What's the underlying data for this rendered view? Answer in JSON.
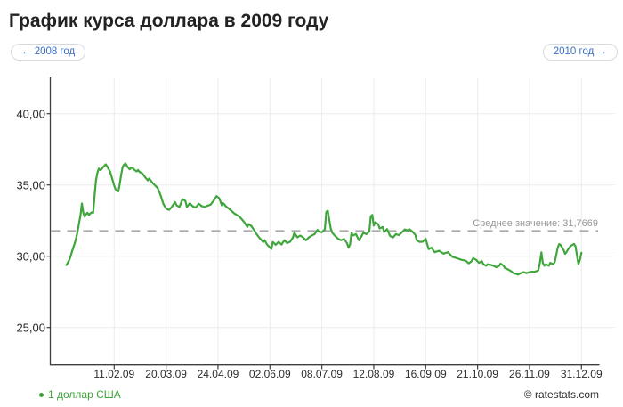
{
  "page": {
    "title": "График курса доллара в 2009 году"
  },
  "nav": {
    "prev_label": "← 2008 год",
    "next_label": "2010 год →",
    "link_color": "#3a70c4"
  },
  "footer": {
    "copyright": "© ratestats.com"
  },
  "chart_data": {
    "type": "line",
    "title": "График курса доллара в 2009 году",
    "legend_position": "bottom-left",
    "grid": true,
    "y_axis": {
      "values": [
        25,
        30,
        35,
        40
      ],
      "labels": [
        "25,00",
        "30,00",
        "35,00",
        "40,00"
      ],
      "range_shown": [
        22.4,
        42.5
      ]
    },
    "x_axis": {
      "ticks": [
        {
          "day": 42,
          "label": "11.02.09"
        },
        {
          "day": 79,
          "label": "20.03.09"
        },
        {
          "day": 114,
          "label": "24.04.09"
        },
        {
          "day": 153,
          "label": "02.06.09"
        },
        {
          "day": 189,
          "label": "08.07.09"
        },
        {
          "day": 224,
          "label": "12.08.09"
        },
        {
          "day": 259,
          "label": "16.09.09"
        },
        {
          "day": 294,
          "label": "21.10.09"
        },
        {
          "day": 330,
          "label": "26.11.09"
        },
        {
          "day": 365,
          "label": "31.12.09"
        }
      ]
    },
    "average": {
      "value": 31.7669,
      "label": "Среднее значение: 31,7669"
    },
    "colors": {
      "line": "#3fa63c",
      "grid": "#ececec",
      "axis": "#3f3f3f",
      "average_line": "#a9a9a9",
      "average_label": "#989898",
      "tick_text": "#2d2d2d"
    },
    "series": [
      {
        "name": "1 доллар США",
        "color": "#3fa63c",
        "points": [
          [
            8,
            29.39
          ],
          [
            9,
            29.55
          ],
          [
            10,
            29.75
          ],
          [
            11,
            30.0
          ],
          [
            12,
            30.35
          ],
          [
            13,
            30.65
          ],
          [
            14,
            30.95
          ],
          [
            15,
            31.3
          ],
          [
            16,
            31.8
          ],
          [
            17,
            32.35
          ],
          [
            18,
            32.9
          ],
          [
            19,
            33.7
          ],
          [
            20,
            33.05
          ],
          [
            21,
            32.78
          ],
          [
            22,
            32.95
          ],
          [
            23,
            33.05
          ],
          [
            24,
            32.9
          ],
          [
            25,
            33.0
          ],
          [
            26,
            33.08
          ],
          [
            27,
            33.05
          ],
          [
            28,
            34.2
          ],
          [
            29,
            35.3
          ],
          [
            30,
            35.85
          ],
          [
            31,
            36.15
          ],
          [
            32,
            36.05
          ],
          [
            33,
            36.1
          ],
          [
            34,
            36.25
          ],
          [
            35,
            36.35
          ],
          [
            36,
            36.45
          ],
          [
            37,
            36.3
          ],
          [
            38,
            36.12
          ],
          [
            39,
            35.95
          ],
          [
            40,
            35.65
          ],
          [
            41,
            35.3
          ],
          [
            42,
            34.95
          ],
          [
            43,
            34.7
          ],
          [
            44,
            34.6
          ],
          [
            45,
            34.55
          ],
          [
            46,
            35.1
          ],
          [
            47,
            35.75
          ],
          [
            48,
            36.25
          ],
          [
            49,
            36.42
          ],
          [
            50,
            36.52
          ],
          [
            51,
            36.35
          ],
          [
            52,
            36.22
          ],
          [
            53,
            36.1
          ],
          [
            54,
            36.18
          ],
          [
            55,
            36.22
          ],
          [
            56,
            36.1
          ],
          [
            57,
            36.02
          ],
          [
            58,
            35.95
          ],
          [
            59,
            36.05
          ],
          [
            60,
            35.92
          ],
          [
            62,
            35.82
          ],
          [
            64,
            35.55
          ],
          [
            66,
            35.32
          ],
          [
            67,
            35.45
          ],
          [
            69,
            35.18
          ],
          [
            71,
            34.98
          ],
          [
            73,
            34.78
          ],
          [
            75,
            34.3
          ],
          [
            77,
            33.68
          ],
          [
            79,
            33.35
          ],
          [
            81,
            33.25
          ],
          [
            83,
            33.48
          ],
          [
            85,
            33.8
          ],
          [
            86,
            33.58
          ],
          [
            88,
            33.45
          ],
          [
            90,
            34.0
          ],
          [
            92,
            33.88
          ],
          [
            93,
            33.45
          ],
          [
            95,
            33.72
          ],
          [
            97,
            33.5
          ],
          [
            99,
            33.42
          ],
          [
            101,
            33.68
          ],
          [
            103,
            33.52
          ],
          [
            105,
            33.45
          ],
          [
            107,
            33.55
          ],
          [
            109,
            33.62
          ],
          [
            111,
            33.9
          ],
          [
            113,
            34.22
          ],
          [
            115,
            34.05
          ],
          [
            116,
            33.78
          ],
          [
            117,
            33.55
          ],
          [
            118,
            33.72
          ],
          [
            120,
            33.5
          ],
          [
            122,
            33.35
          ],
          [
            124,
            33.2
          ],
          [
            126,
            33.02
          ],
          [
            128,
            32.9
          ],
          [
            130,
            32.78
          ],
          [
            132,
            32.58
          ],
          [
            134,
            32.35
          ],
          [
            136,
            32.05
          ],
          [
            137,
            32.25
          ],
          [
            139,
            32.12
          ],
          [
            141,
            31.85
          ],
          [
            143,
            31.55
          ],
          [
            145,
            31.3
          ],
          [
            147,
            31.1
          ],
          [
            148,
            31.0
          ],
          [
            149,
            31.12
          ],
          [
            151,
            30.8
          ],
          [
            153,
            30.62
          ],
          [
            154,
            30.5
          ],
          [
            155,
            31.0
          ],
          [
            157,
            30.8
          ],
          [
            159,
            31.0
          ],
          [
            161,
            30.82
          ],
          [
            163,
            31.12
          ],
          [
            165,
            30.92
          ],
          [
            167,
            31.02
          ],
          [
            169,
            31.32
          ],
          [
            170,
            31.65
          ],
          [
            172,
            31.32
          ],
          [
            174,
            31.45
          ],
          [
            176,
            31.32
          ],
          [
            178,
            31.12
          ],
          [
            180,
            31.32
          ],
          [
            182,
            31.45
          ],
          [
            184,
            31.55
          ],
          [
            186,
            31.85
          ],
          [
            187,
            31.72
          ],
          [
            189,
            31.68
          ],
          [
            191,
            31.88
          ],
          [
            192,
            33.1
          ],
          [
            193,
            33.2
          ],
          [
            194,
            32.55
          ],
          [
            195,
            31.95
          ],
          [
            196,
            31.65
          ],
          [
            198,
            31.42
          ],
          [
            200,
            31.22
          ],
          [
            202,
            31.12
          ],
          [
            204,
            31.22
          ],
          [
            206,
            30.9
          ],
          [
            207,
            30.6
          ],
          [
            208,
            30.82
          ],
          [
            209,
            31.65
          ],
          [
            210,
            31.45
          ],
          [
            212,
            31.55
          ],
          [
            214,
            31.12
          ],
          [
            216,
            31.45
          ],
          [
            217,
            31.65
          ],
          [
            219,
            31.55
          ],
          [
            221,
            31.75
          ],
          [
            222,
            32.8
          ],
          [
            223,
            32.9
          ],
          [
            224,
            32.15
          ],
          [
            225,
            32.38
          ],
          [
            227,
            32.25
          ],
          [
            228,
            31.95
          ],
          [
            230,
            32.05
          ],
          [
            231,
            31.7
          ],
          [
            233,
            31.9
          ],
          [
            235,
            31.42
          ],
          [
            237,
            31.32
          ],
          [
            239,
            31.55
          ],
          [
            241,
            31.48
          ],
          [
            243,
            31.68
          ],
          [
            245,
            31.88
          ],
          [
            247,
            31.8
          ],
          [
            248,
            31.9
          ],
          [
            250,
            31.73
          ],
          [
            252,
            31.5
          ],
          [
            253,
            31.12
          ],
          [
            255,
            31.0
          ],
          [
            257,
            31.02
          ],
          [
            258,
            31.12
          ],
          [
            259,
            31.22
          ],
          [
            261,
            30.5
          ],
          [
            263,
            30.6
          ],
          [
            265,
            30.28
          ],
          [
            268,
            30.38
          ],
          [
            271,
            30.18
          ],
          [
            274,
            30.28
          ],
          [
            277,
            29.96
          ],
          [
            280,
            29.86
          ],
          [
            283,
            29.75
          ],
          [
            286,
            29.69
          ],
          [
            288,
            29.5
          ],
          [
            290,
            29.65
          ],
          [
            291,
            29.86
          ],
          [
            293,
            29.75
          ],
          [
            295,
            29.54
          ],
          [
            297,
            29.65
          ],
          [
            298,
            29.44
          ],
          [
            300,
            29.33
          ],
          [
            301,
            29.44
          ],
          [
            303,
            29.4
          ],
          [
            305,
            29.33
          ],
          [
            307,
            29.23
          ],
          [
            309,
            29.33
          ],
          [
            310,
            29.48
          ],
          [
            312,
            29.33
          ],
          [
            313,
            29.17
          ],
          [
            315,
            29.08
          ],
          [
            317,
            28.96
          ],
          [
            319,
            28.81
          ],
          [
            321,
            28.75
          ],
          [
            322,
            28.71
          ],
          [
            324,
            28.81
          ],
          [
            326,
            28.88
          ],
          [
            328,
            28.81
          ],
          [
            330,
            28.88
          ],
          [
            332,
            28.92
          ],
          [
            333,
            28.9
          ],
          [
            335,
            28.96
          ],
          [
            336,
            29.02
          ],
          [
            337,
            29.54
          ],
          [
            338,
            30.27
          ],
          [
            339,
            29.54
          ],
          [
            340,
            29.33
          ],
          [
            341,
            29.44
          ],
          [
            343,
            29.33
          ],
          [
            344,
            29.54
          ],
          [
            346,
            29.44
          ],
          [
            347,
            29.6
          ],
          [
            348,
            30.06
          ],
          [
            349,
            30.59
          ],
          [
            350,
            30.85
          ],
          [
            351,
            30.79
          ],
          [
            352,
            30.6
          ],
          [
            353,
            30.44
          ],
          [
            354,
            30.17
          ],
          [
            355,
            30.3
          ],
          [
            356,
            30.48
          ],
          [
            357,
            30.62
          ],
          [
            358,
            30.73
          ],
          [
            359,
            30.8
          ],
          [
            360,
            30.86
          ],
          [
            361,
            30.7
          ],
          [
            362,
            30.05
          ],
          [
            363,
            29.45
          ],
          [
            364,
            29.75
          ],
          [
            365,
            30.24
          ]
        ]
      }
    ]
  }
}
